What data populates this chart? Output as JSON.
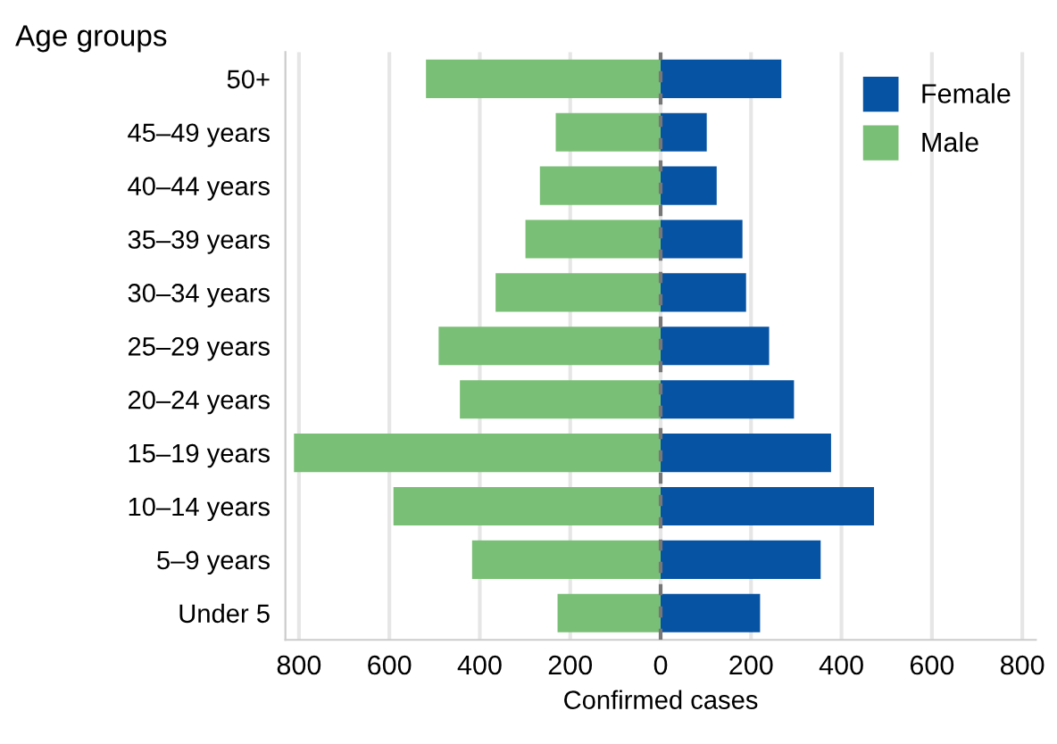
{
  "chart_data": {
    "type": "bar",
    "orientation": "horizontal",
    "ylabel": "Age groups",
    "xlabel": "Confirmed cases",
    "categories": [
      "50+",
      "45–49 years",
      "40–44 years",
      "35–39 years",
      "30–34 years",
      "25–29 years",
      "20–24 years",
      "15–19 years",
      "10–14 years",
      "5–9 years",
      "Under 5"
    ],
    "series": [
      {
        "name": "Female",
        "color": "#0753a3",
        "values": [
          267,
          102,
          124,
          181,
          189,
          240,
          295,
          377,
          472,
          354,
          220
        ]
      },
      {
        "name": "Male",
        "color": "#79bf75",
        "values": [
          -519,
          -232,
          -267,
          -299,
          -365,
          -491,
          -444,
          -811,
          -591,
          -417,
          -228
        ]
      }
    ],
    "xlim": [
      -830,
      830
    ],
    "xticks": [
      {
        "value": -800,
        "label": "800"
      },
      {
        "value": -600,
        "label": "600"
      },
      {
        "value": -400,
        "label": "400"
      },
      {
        "value": -200,
        "label": "200"
      },
      0,
      200,
      400,
      600,
      800
    ],
    "ref_lines": [
      {
        "axis": "x",
        "value": 0,
        "color": "#777777",
        "line_style": "dashed"
      }
    ],
    "stacked": true,
    "grid": "x",
    "legend": "top right"
  }
}
